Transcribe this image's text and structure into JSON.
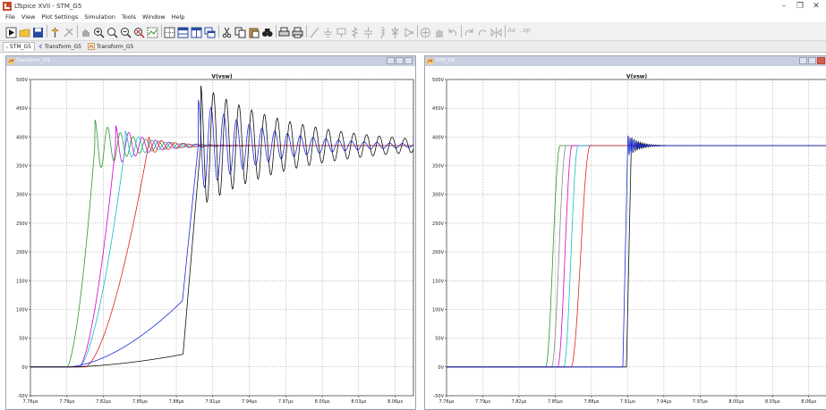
{
  "app": {
    "title": "LTspice XVII - STM_G5",
    "window_controls": [
      "–",
      "❐",
      "✕"
    ]
  },
  "menu": {
    "items": [
      {
        "label": "File",
        "key": "F"
      },
      {
        "label": "View",
        "key": "V"
      },
      {
        "label": "Plot Settings",
        "key": "P"
      },
      {
        "label": "Simulation",
        "key": "S"
      },
      {
        "label": "Tools",
        "key": "T"
      },
      {
        "label": "Window",
        "key": "W"
      },
      {
        "label": "Help",
        "key": "H"
      }
    ]
  },
  "toolbar": {
    "icons": [
      "run-icon",
      "open-icon",
      "save-icon",
      "control-panel-icon",
      "halt-icon",
      "pan-icon",
      "zoom-in-icon",
      "zoom-area-icon",
      "zoom-out-icon",
      "zoom-fit-icon",
      "autorange-icon",
      "grid-icon",
      "tile-vertical-icon",
      "tile-horizontal-icon",
      "cascade-icon",
      "cut-icon",
      "copy-icon",
      "paste-icon",
      "find-icon",
      "print-setup-icon",
      "print-icon",
      "wire-icon",
      "ground-icon",
      "label-icon",
      "resistor-icon",
      "capacitor-icon",
      "inductor-icon",
      "diode-icon",
      "component-icon",
      "move-icon",
      "drag-icon",
      "undo-icon",
      "redo-icon",
      "rotate-icon",
      "mirror-icon",
      "text-icon",
      "spice-directive-icon"
    ],
    "text_icon_label": "Aa",
    "directive_label": ".op"
  },
  "tabs": [
    {
      "label": "STM_G5",
      "icon": "schematic-icon",
      "active": true
    },
    {
      "label": "Transform_G5",
      "icon": "waveform-icon",
      "active": false
    },
    {
      "label": "Transform_G5",
      "icon": "schematic-icon",
      "active": false
    }
  ],
  "windows": [
    {
      "title": "Transform_G5",
      "active": false,
      "chart_data": {
        "type": "line",
        "title": "V(vsw)",
        "ylim": [
          -50,
          500
        ],
        "xlim": [
          7.76,
          8.075
        ],
        "y_ticks": [
          -50,
          0,
          50,
          100,
          150,
          200,
          250,
          300,
          350,
          400,
          450,
          500
        ],
        "y_tick_labels": [
          "-50V",
          "0V",
          "50V",
          "100V",
          "150V",
          "200V",
          "250V",
          "300V",
          "350V",
          "400V",
          "450V",
          "500V"
        ],
        "x_ticks": [
          7.76,
          7.79,
          7.82,
          7.85,
          7.88,
          7.91,
          7.94,
          7.97,
          8.0,
          8.03,
          8.06
        ],
        "x_tick_labels": [
          "7.76µs",
          "7.79µs",
          "7.82µs",
          "7.85µs",
          "7.88µs",
          "7.91µs",
          "7.94µs",
          "7.97µs",
          "8.00µs",
          "8.03µs",
          "8.06µs"
        ],
        "grid": true,
        "series": [
          {
            "color": "#2a9a2a",
            "kind": "ring",
            "t0": 7.79,
            "rise": 0.023,
            "amp": 45,
            "decay": 0.03,
            "period": 0.0105
          },
          {
            "color": "#d100d1",
            "kind": "ring",
            "t0": 7.8,
            "rise": 0.03,
            "amp": 35,
            "decay": 0.025,
            "period": 0.011
          },
          {
            "color": "#18b8c8",
            "kind": "ring",
            "t0": 7.8,
            "rise": 0.038,
            "amp": 25,
            "decay": 0.022,
            "period": 0.011
          },
          {
            "color": "#e02020",
            "kind": "ring",
            "t0": 7.805,
            "rise": 0.052,
            "amp": 15,
            "decay": 0.02,
            "period": 0.011
          },
          {
            "color": "#1a2ad8",
            "kind": "ramp",
            "knee_t": 7.885,
            "knee_v": 115,
            "edge_end_t": 7.898,
            "amp": 80,
            "decay": 0.055,
            "period": 0.0105
          },
          {
            "color": "#111111",
            "kind": "ramp",
            "knee_t": 7.8855,
            "knee_v": 22,
            "edge_end_t": 7.9,
            "amp": 105,
            "decay": 0.08,
            "period": 0.0105
          }
        ],
        "settle_v": 385
      }
    },
    {
      "title": "STM_G5",
      "active": true,
      "chart_data": {
        "type": "line",
        "title": "V(vsw)",
        "ylim": [
          -50,
          500
        ],
        "xlim": [
          7.76,
          8.075
        ],
        "y_ticks": [
          -50,
          0,
          50,
          100,
          150,
          200,
          250,
          300,
          350,
          400,
          450,
          500
        ],
        "y_tick_labels": [
          "-50V",
          "0V",
          "50V",
          "100V",
          "150V",
          "200V",
          "250V",
          "300V",
          "350V",
          "400V",
          "450V",
          "500V"
        ],
        "x_ticks": [
          7.76,
          7.79,
          7.82,
          7.85,
          7.88,
          7.91,
          7.94,
          7.97,
          8.0,
          8.03,
          8.06
        ],
        "x_tick_labels": [
          "7.76µs",
          "7.79µs",
          "7.82µs",
          "7.85µs",
          "7.88µs",
          "7.91µs",
          "7.94µs",
          "7.97µs",
          "8.00µs",
          "8.03µs",
          "8.06µs"
        ],
        "grid": true,
        "series": [
          {
            "color": "#2a9a2a",
            "kind": "step",
            "t_start": 7.842,
            "t_end": 7.854
          },
          {
            "color": "#888888",
            "kind": "step",
            "t_start": 7.847,
            "t_end": 7.859
          },
          {
            "color": "#d100d1",
            "kind": "step",
            "t_start": 7.852,
            "t_end": 7.864
          },
          {
            "color": "#18b8c8",
            "kind": "step",
            "t_start": 7.857,
            "t_end": 7.869
          },
          {
            "color": "#e02020",
            "kind": "step",
            "t_start": 7.863,
            "t_end": 7.879
          },
          {
            "color": "#111111",
            "kind": "fast",
            "t_start": 7.909,
            "t_end": 7.913,
            "amp": 15,
            "decay": 0.008,
            "period": 0.0018
          },
          {
            "color": "#1a2ad8",
            "kind": "fast",
            "t_start": 7.906,
            "t_end": 7.91,
            "amp": 20,
            "decay": 0.006,
            "period": 0.0016
          }
        ],
        "settle_v": 385
      }
    }
  ]
}
